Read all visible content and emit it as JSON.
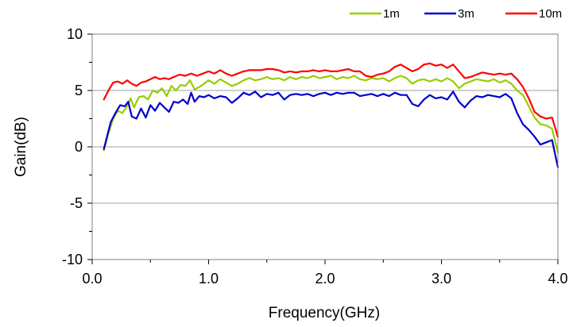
{
  "chart_data": {
    "type": "line",
    "title": "",
    "xlabel": "Frequency(GHz)",
    "ylabel": "Gain(dB)",
    "xlim": [
      0.0,
      4.0
    ],
    "ylim": [
      -10,
      10
    ],
    "x_ticks": [
      "0.0",
      "1.0",
      "2.0",
      "3.0",
      "4.0"
    ],
    "x_tick_values": [
      0.0,
      1.0,
      2.0,
      3.0,
      4.0
    ],
    "y_ticks": [
      "10",
      "5",
      "0",
      "-5",
      "-10"
    ],
    "y_tick_values": [
      10,
      5,
      0,
      -5,
      -10
    ],
    "grid": "horizontal",
    "legend_position": "top-right",
    "series": [
      {
        "name": "1m",
        "color": "#99CC00",
        "points": [
          [
            0.1,
            -0.3
          ],
          [
            0.14,
            1.2
          ],
          [
            0.18,
            2.5
          ],
          [
            0.22,
            3.2
          ],
          [
            0.26,
            3.0
          ],
          [
            0.3,
            3.6
          ],
          [
            0.33,
            4.3
          ],
          [
            0.36,
            3.5
          ],
          [
            0.4,
            4.4
          ],
          [
            0.44,
            4.5
          ],
          [
            0.48,
            4.2
          ],
          [
            0.52,
            5.0
          ],
          [
            0.56,
            4.8
          ],
          [
            0.6,
            5.2
          ],
          [
            0.64,
            4.5
          ],
          [
            0.68,
            5.4
          ],
          [
            0.72,
            5.0
          ],
          [
            0.76,
            5.5
          ],
          [
            0.8,
            5.4
          ],
          [
            0.84,
            5.9
          ],
          [
            0.88,
            5.1
          ],
          [
            0.92,
            5.3
          ],
          [
            0.96,
            5.6
          ],
          [
            1.0,
            5.9
          ],
          [
            1.05,
            5.6
          ],
          [
            1.1,
            6.0
          ],
          [
            1.15,
            5.7
          ],
          [
            1.2,
            5.4
          ],
          [
            1.25,
            5.6
          ],
          [
            1.3,
            5.9
          ],
          [
            1.35,
            6.1
          ],
          [
            1.4,
            5.9
          ],
          [
            1.45,
            6.0
          ],
          [
            1.5,
            6.2
          ],
          [
            1.55,
            6.0
          ],
          [
            1.6,
            6.1
          ],
          [
            1.65,
            5.9
          ],
          [
            1.7,
            6.2
          ],
          [
            1.75,
            6.0
          ],
          [
            1.8,
            6.2
          ],
          [
            1.85,
            6.1
          ],
          [
            1.9,
            6.3
          ],
          [
            1.95,
            6.1
          ],
          [
            2.0,
            6.2
          ],
          [
            2.05,
            6.3
          ],
          [
            2.1,
            6.0
          ],
          [
            2.15,
            6.2
          ],
          [
            2.2,
            6.1
          ],
          [
            2.25,
            6.3
          ],
          [
            2.3,
            6.0
          ],
          [
            2.35,
            5.9
          ],
          [
            2.4,
            6.1
          ],
          [
            2.45,
            6.0
          ],
          [
            2.5,
            6.1
          ],
          [
            2.55,
            5.8
          ],
          [
            2.6,
            6.1
          ],
          [
            2.65,
            6.3
          ],
          [
            2.7,
            6.1
          ],
          [
            2.75,
            5.6
          ],
          [
            2.8,
            5.9
          ],
          [
            2.85,
            6.0
          ],
          [
            2.9,
            5.8
          ],
          [
            2.95,
            6.0
          ],
          [
            3.0,
            5.8
          ],
          [
            3.05,
            6.1
          ],
          [
            3.1,
            5.8
          ],
          [
            3.15,
            5.2
          ],
          [
            3.2,
            5.6
          ],
          [
            3.25,
            5.8
          ],
          [
            3.3,
            6.0
          ],
          [
            3.35,
            5.9
          ],
          [
            3.4,
            5.8
          ],
          [
            3.45,
            6.0
          ],
          [
            3.5,
            5.7
          ],
          [
            3.55,
            5.9
          ],
          [
            3.6,
            5.6
          ],
          [
            3.65,
            5.0
          ],
          [
            3.7,
            4.6
          ],
          [
            3.75,
            3.6
          ],
          [
            3.8,
            2.6
          ],
          [
            3.85,
            2.0
          ],
          [
            3.9,
            1.9
          ],
          [
            3.95,
            1.6
          ],
          [
            4.0,
            -0.5
          ]
        ]
      },
      {
        "name": "3m",
        "color": "#0000CC",
        "points": [
          [
            0.1,
            -0.2
          ],
          [
            0.13,
            1.0
          ],
          [
            0.16,
            2.2
          ],
          [
            0.2,
            3.0
          ],
          [
            0.24,
            3.7
          ],
          [
            0.28,
            3.6
          ],
          [
            0.31,
            4.0
          ],
          [
            0.34,
            2.7
          ],
          [
            0.38,
            2.5
          ],
          [
            0.42,
            3.4
          ],
          [
            0.46,
            2.6
          ],
          [
            0.5,
            3.7
          ],
          [
            0.54,
            3.2
          ],
          [
            0.58,
            3.9
          ],
          [
            0.62,
            3.5
          ],
          [
            0.66,
            3.1
          ],
          [
            0.7,
            4.0
          ],
          [
            0.74,
            3.9
          ],
          [
            0.78,
            4.2
          ],
          [
            0.82,
            3.8
          ],
          [
            0.85,
            4.8
          ],
          [
            0.88,
            4.0
          ],
          [
            0.92,
            4.5
          ],
          [
            0.96,
            4.4
          ],
          [
            1.0,
            4.6
          ],
          [
            1.05,
            4.3
          ],
          [
            1.1,
            4.5
          ],
          [
            1.15,
            4.4
          ],
          [
            1.2,
            3.9
          ],
          [
            1.25,
            4.3
          ],
          [
            1.3,
            4.8
          ],
          [
            1.35,
            4.6
          ],
          [
            1.4,
            4.9
          ],
          [
            1.45,
            4.4
          ],
          [
            1.5,
            4.7
          ],
          [
            1.55,
            4.6
          ],
          [
            1.6,
            4.8
          ],
          [
            1.65,
            4.2
          ],
          [
            1.7,
            4.6
          ],
          [
            1.75,
            4.7
          ],
          [
            1.8,
            4.6
          ],
          [
            1.85,
            4.7
          ],
          [
            1.9,
            4.5
          ],
          [
            1.95,
            4.7
          ],
          [
            2.0,
            4.8
          ],
          [
            2.05,
            4.6
          ],
          [
            2.1,
            4.8
          ],
          [
            2.15,
            4.7
          ],
          [
            2.2,
            4.8
          ],
          [
            2.25,
            4.8
          ],
          [
            2.3,
            4.5
          ],
          [
            2.35,
            4.6
          ],
          [
            2.4,
            4.7
          ],
          [
            2.45,
            4.5
          ],
          [
            2.5,
            4.7
          ],
          [
            2.55,
            4.5
          ],
          [
            2.6,
            4.8
          ],
          [
            2.65,
            4.6
          ],
          [
            2.7,
            4.6
          ],
          [
            2.75,
            3.8
          ],
          [
            2.8,
            3.6
          ],
          [
            2.85,
            4.2
          ],
          [
            2.9,
            4.6
          ],
          [
            2.95,
            4.3
          ],
          [
            3.0,
            4.4
          ],
          [
            3.05,
            4.2
          ],
          [
            3.1,
            4.9
          ],
          [
            3.15,
            4.0
          ],
          [
            3.2,
            3.5
          ],
          [
            3.25,
            4.1
          ],
          [
            3.3,
            4.5
          ],
          [
            3.35,
            4.4
          ],
          [
            3.4,
            4.6
          ],
          [
            3.45,
            4.5
          ],
          [
            3.5,
            4.4
          ],
          [
            3.55,
            4.7
          ],
          [
            3.6,
            4.3
          ],
          [
            3.65,
            3.0
          ],
          [
            3.7,
            2.0
          ],
          [
            3.75,
            1.5
          ],
          [
            3.8,
            0.9
          ],
          [
            3.85,
            0.2
          ],
          [
            3.9,
            0.4
          ],
          [
            3.95,
            0.6
          ],
          [
            4.0,
            -1.8
          ]
        ]
      },
      {
        "name": "10m",
        "color": "#FF0000",
        "points": [
          [
            0.1,
            4.2
          ],
          [
            0.14,
            5.0
          ],
          [
            0.18,
            5.7
          ],
          [
            0.22,
            5.8
          ],
          [
            0.26,
            5.6
          ],
          [
            0.3,
            5.9
          ],
          [
            0.34,
            5.6
          ],
          [
            0.38,
            5.4
          ],
          [
            0.42,
            5.7
          ],
          [
            0.46,
            5.8
          ],
          [
            0.5,
            6.0
          ],
          [
            0.54,
            6.2
          ],
          [
            0.58,
            6.0
          ],
          [
            0.62,
            6.1
          ],
          [
            0.66,
            6.0
          ],
          [
            0.7,
            6.2
          ],
          [
            0.75,
            6.4
          ],
          [
            0.8,
            6.3
          ],
          [
            0.85,
            6.5
          ],
          [
            0.9,
            6.3
          ],
          [
            0.95,
            6.5
          ],
          [
            1.0,
            6.7
          ],
          [
            1.05,
            6.5
          ],
          [
            1.1,
            6.8
          ],
          [
            1.15,
            6.5
          ],
          [
            1.2,
            6.3
          ],
          [
            1.25,
            6.5
          ],
          [
            1.3,
            6.7
          ],
          [
            1.35,
            6.8
          ],
          [
            1.4,
            6.8
          ],
          [
            1.45,
            6.8
          ],
          [
            1.5,
            6.9
          ],
          [
            1.55,
            6.9
          ],
          [
            1.6,
            6.8
          ],
          [
            1.65,
            6.6
          ],
          [
            1.7,
            6.7
          ],
          [
            1.75,
            6.6
          ],
          [
            1.8,
            6.7
          ],
          [
            1.85,
            6.7
          ],
          [
            1.9,
            6.8
          ],
          [
            1.95,
            6.7
          ],
          [
            2.0,
            6.8
          ],
          [
            2.05,
            6.7
          ],
          [
            2.1,
            6.7
          ],
          [
            2.15,
            6.8
          ],
          [
            2.2,
            6.9
          ],
          [
            2.25,
            6.7
          ],
          [
            2.3,
            6.7
          ],
          [
            2.35,
            6.3
          ],
          [
            2.4,
            6.2
          ],
          [
            2.45,
            6.4
          ],
          [
            2.5,
            6.5
          ],
          [
            2.55,
            6.7
          ],
          [
            2.6,
            7.1
          ],
          [
            2.65,
            7.3
          ],
          [
            2.7,
            7.0
          ],
          [
            2.75,
            6.7
          ],
          [
            2.8,
            6.9
          ],
          [
            2.85,
            7.3
          ],
          [
            2.9,
            7.4
          ],
          [
            2.95,
            7.2
          ],
          [
            3.0,
            7.3
          ],
          [
            3.05,
            7.0
          ],
          [
            3.1,
            7.3
          ],
          [
            3.15,
            6.7
          ],
          [
            3.2,
            6.1
          ],
          [
            3.25,
            6.2
          ],
          [
            3.3,
            6.4
          ],
          [
            3.35,
            6.6
          ],
          [
            3.4,
            6.5
          ],
          [
            3.45,
            6.4
          ],
          [
            3.5,
            6.5
          ],
          [
            3.55,
            6.4
          ],
          [
            3.6,
            6.5
          ],
          [
            3.65,
            6.0
          ],
          [
            3.7,
            5.3
          ],
          [
            3.75,
            4.3
          ],
          [
            3.8,
            3.1
          ],
          [
            3.85,
            2.7
          ],
          [
            3.9,
            2.5
          ],
          [
            3.95,
            2.6
          ],
          [
            4.0,
            0.9
          ]
        ]
      }
    ]
  }
}
